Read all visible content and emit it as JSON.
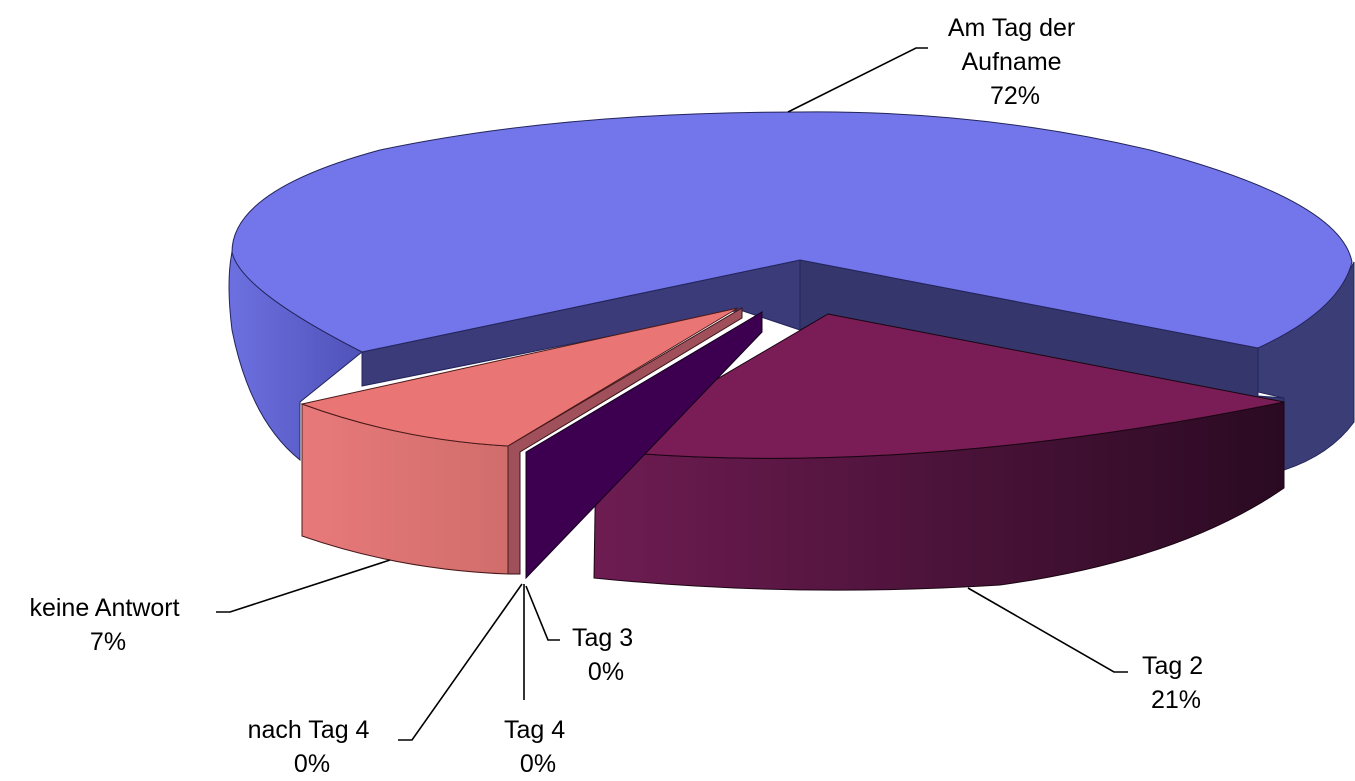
{
  "chart_data": {
    "type": "pie",
    "three_d": true,
    "title": "",
    "slices": [
      {
        "label": "Am Tag der Aufname",
        "value": 72,
        "value_label": "72%",
        "color": "#7375ea",
        "exploded": false
      },
      {
        "label": "Tag 2",
        "value": 21,
        "value_label": "21%",
        "color": "#7a1d56",
        "exploded": true
      },
      {
        "label": "Tag 3",
        "value": 0,
        "value_label": "0%",
        "color": "#3d0050",
        "exploded": true
      },
      {
        "label": "Tag 4",
        "value": 0,
        "value_label": "0%",
        "color": "#3d0050",
        "exploded": true
      },
      {
        "label": "nach Tag 4",
        "value": 0,
        "value_label": "0%",
        "color": "#a0505a",
        "exploded": true
      },
      {
        "label": "keine Antwort",
        "value": 7,
        "value_label": "7%",
        "color": "#ea7575",
        "exploded": true
      }
    ],
    "legend": "none",
    "data_labels": "outside-with-leader-lines"
  }
}
